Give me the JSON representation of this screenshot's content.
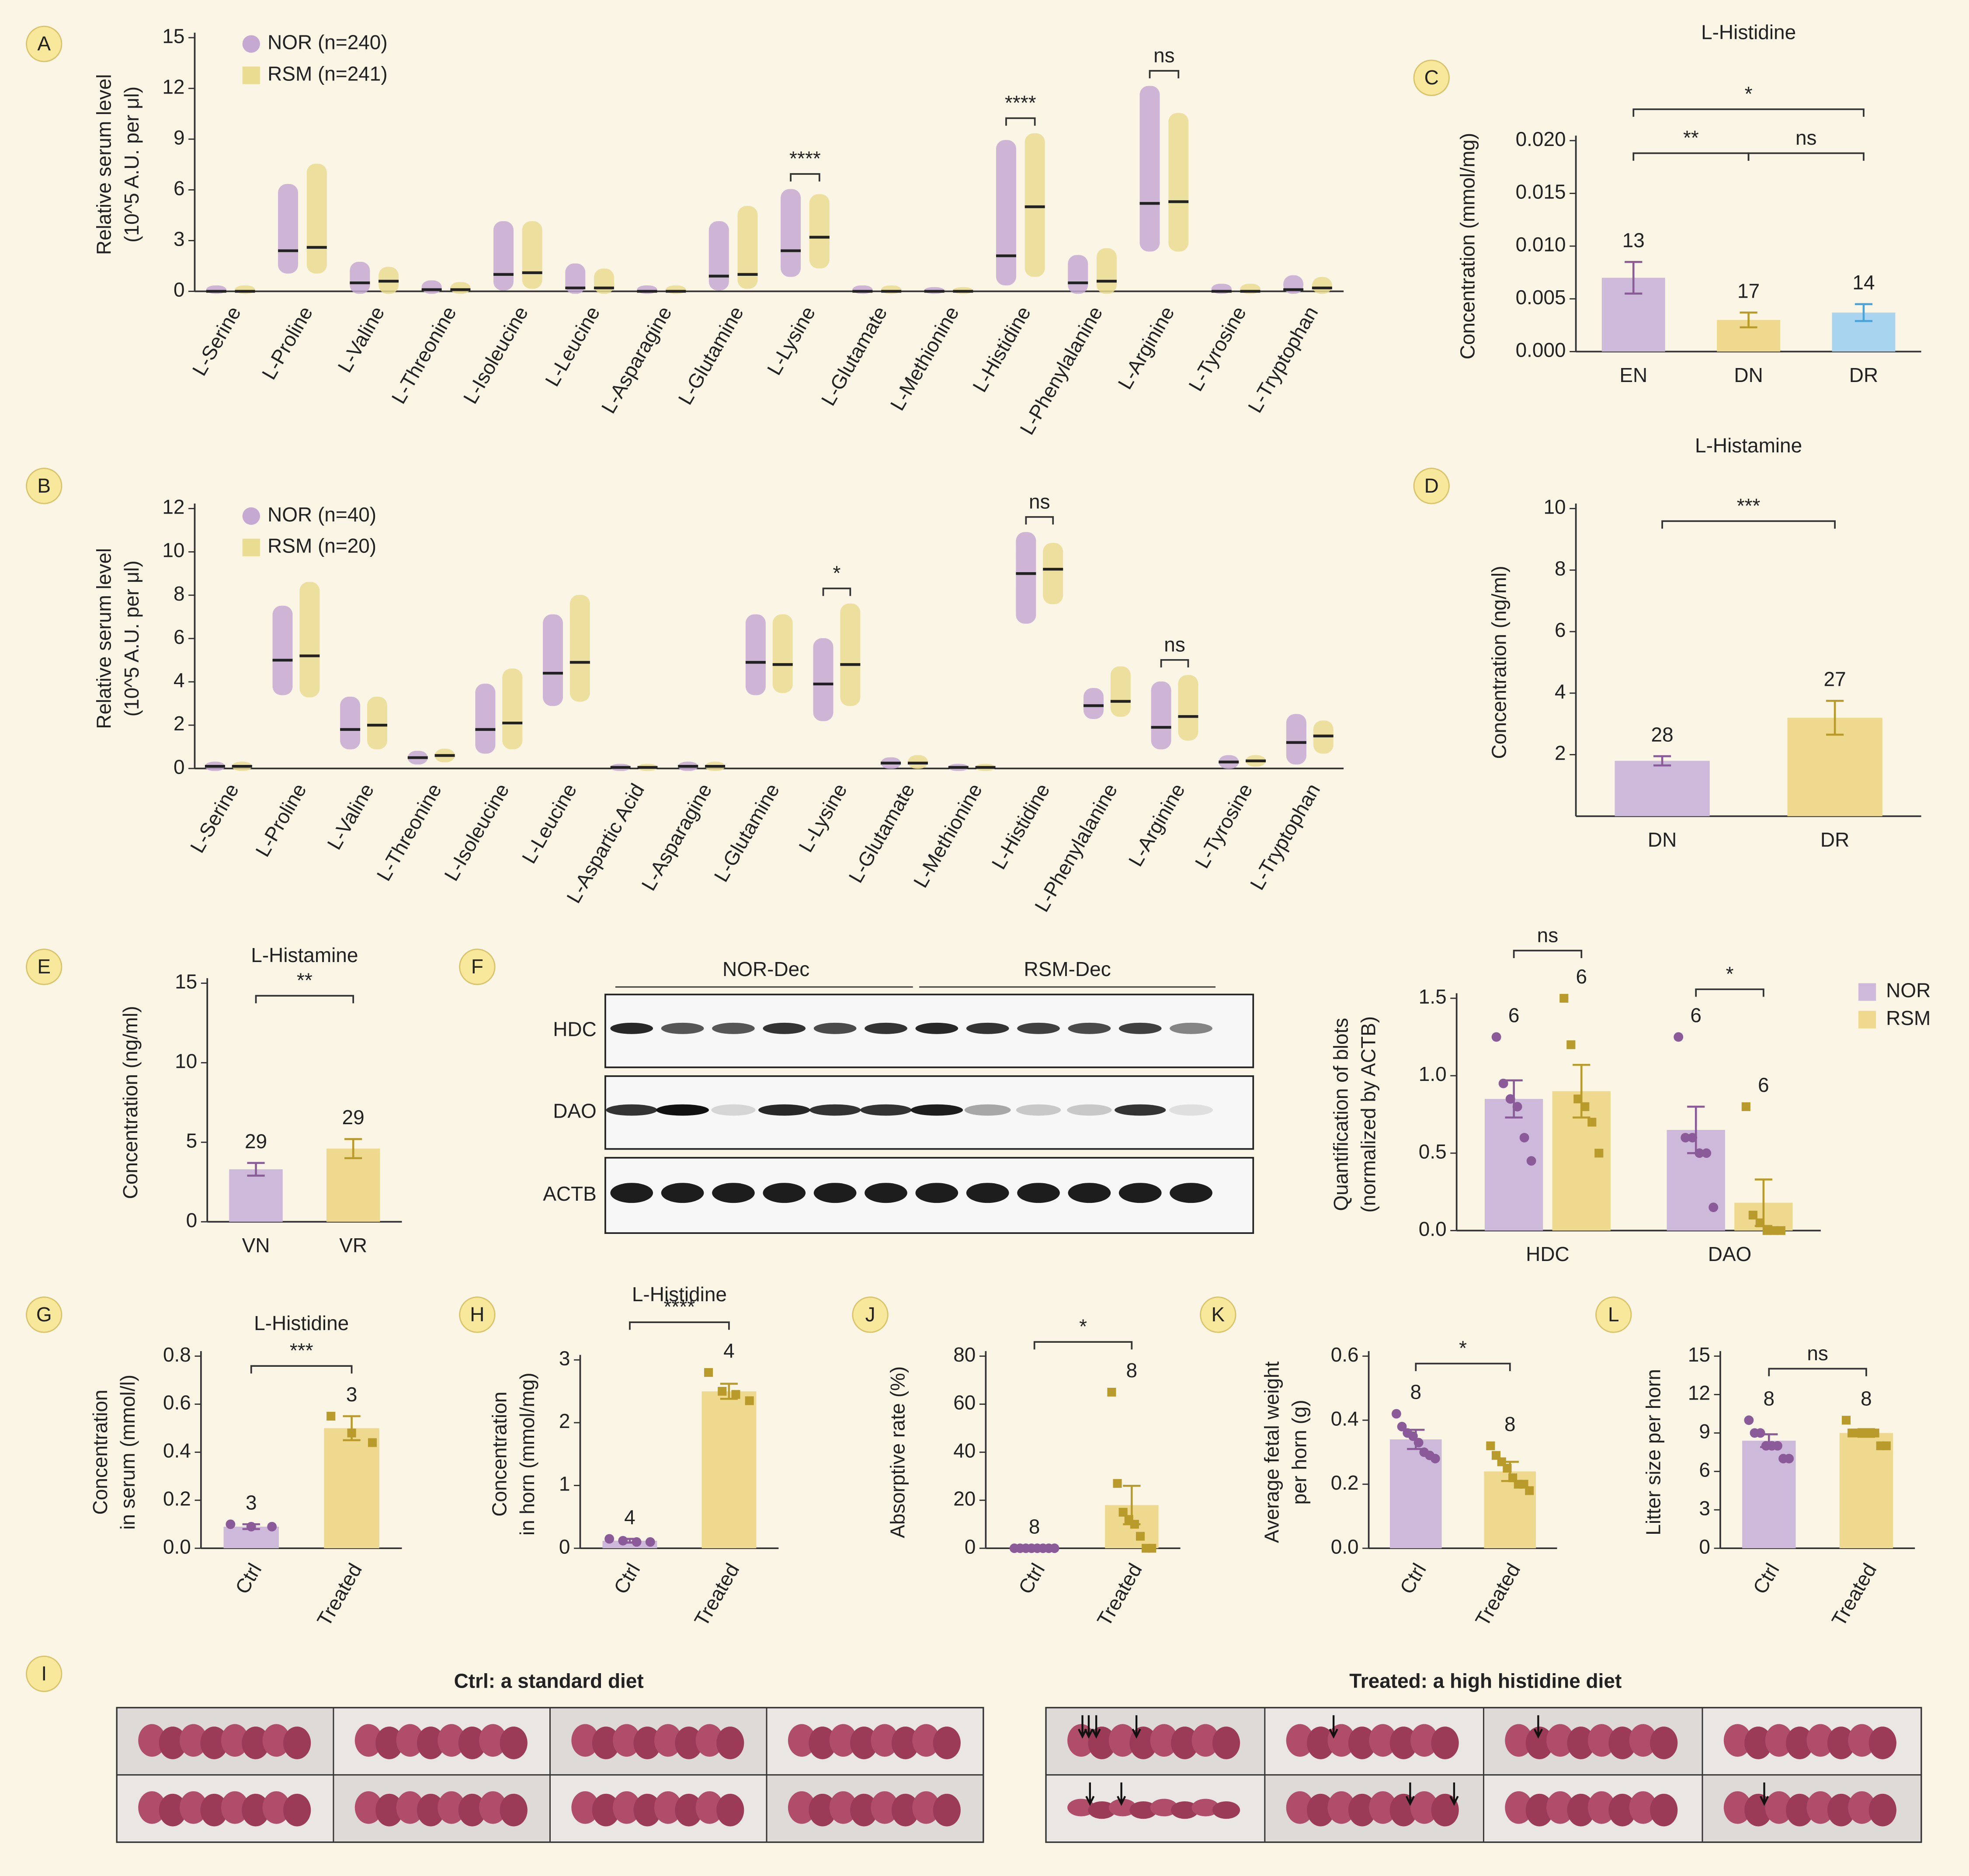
{
  "chart_data": [
    {
      "label": "A",
      "type": "strip",
      "ylabel": [
        "Relative serum level",
        "(10^5 A.U. per μl)"
      ],
      "categories": [
        "L-Serine",
        "L-Proline",
        "L-Valine",
        "L-Threonine",
        "L-Isoleucine",
        "L-Leucine",
        "L-Asparagine",
        "L-Glutamine",
        "L-Lysine",
        "L-Glutamate",
        "L-Methionine",
        "L-Histidine",
        "L-Phenylalanine",
        "L-Arginine",
        "L-Tyrosine",
        "L-Tryptophan"
      ],
      "series": [
        {
          "name": "NOR (n=240)",
          "color": "#c6a9d2",
          "marker": "circle",
          "values": [
            0,
            2.4,
            0.5,
            0.1,
            1.0,
            0.2,
            0,
            0.9,
            2.4,
            0,
            0,
            2.1,
            0.5,
            5.2,
            0,
            0.1
          ],
          "min": [
            0,
            1.2,
            0,
            0,
            0.2,
            0,
            0,
            0.2,
            1,
            0,
            0,
            0.5,
            0,
            2.5,
            0,
            0
          ],
          "max": [
            0.2,
            6.2,
            1.6,
            0.5,
            4.0,
            1.5,
            0.2,
            4.0,
            5.9,
            0.2,
            0.1,
            8.8,
            2.0,
            12.0,
            0.3,
            0.8
          ]
        },
        {
          "name": "RSM (n=241)",
          "color": "#eadc90",
          "marker": "square",
          "values": [
            0,
            2.6,
            0.6,
            0.1,
            1.1,
            0.2,
            0,
            1.0,
            3.2,
            0,
            0,
            5.0,
            0.6,
            5.3,
            0,
            0.2
          ],
          "min": [
            0,
            1.2,
            0,
            0,
            0.3,
            0,
            0,
            0.3,
            1.5,
            0,
            0,
            1,
            0,
            2.5,
            0,
            0
          ],
          "max": [
            0.2,
            7.4,
            1.3,
            0.4,
            4.0,
            1.2,
            0.2,
            4.9,
            5.6,
            0.2,
            0.1,
            9.2,
            2.4,
            10.4,
            0.3,
            0.7
          ]
        }
      ],
      "significance": [
        null,
        null,
        null,
        null,
        null,
        null,
        null,
        null,
        "****",
        null,
        null,
        "****",
        null,
        "ns",
        null,
        null
      ],
      "ylim": [
        0,
        15
      ],
      "yticks": [
        0,
        3,
        6,
        9,
        12,
        15
      ],
      "rotated_labels": true
    },
    {
      "label": "B",
      "type": "strip",
      "ylabel": [
        "Relative serum level",
        "(10^5 A.U. per μl)"
      ],
      "categories": [
        "L-Serine",
        "L-Proline",
        "L-Valine",
        "L-Threonine",
        "L-Isoleucine",
        "L-Leucine",
        "L-Aspartic Acid",
        "L-Asparagine",
        "L-Glutamine",
        "L-Lysine",
        "L-Glutamate",
        "L-Methionine",
        "L-Histidine",
        "L-Phenylalanine",
        "L-Arginine",
        "L-Tyrosine",
        "L-Tryptophan"
      ],
      "series": [
        {
          "name": "NOR (n=40)",
          "color": "#c6a9d2",
          "marker": "circle",
          "values": [
            0.1,
            5.0,
            1.8,
            0.5,
            1.8,
            4.4,
            0.05,
            0.1,
            4.9,
            3.9,
            0.25,
            0.05,
            9.0,
            2.9,
            1.9,
            0.3,
            1.2
          ],
          "min": [
            0,
            3.5,
            1,
            0.3,
            0.8,
            3,
            0,
            0,
            3.5,
            2.3,
            0.1,
            0,
            6.8,
            2.4,
            1,
            0.1,
            0.3
          ],
          "max": [
            0.2,
            7.4,
            3.2,
            0.7,
            3.8,
            7.0,
            0.1,
            0.2,
            7.0,
            5.9,
            0.4,
            0.1,
            10.8,
            3.6,
            3.9,
            0.5,
            2.4
          ]
        },
        {
          "name": "RSM (n=20)",
          "color": "#eadc90",
          "marker": "square",
          "values": [
            0.1,
            5.2,
            2.0,
            0.6,
            2.1,
            4.9,
            0.05,
            0.1,
            4.8,
            4.8,
            0.25,
            0.05,
            9.2,
            3.1,
            2.4,
            0.35,
            1.5
          ],
          "min": [
            0,
            3.4,
            1,
            0.4,
            1,
            3.2,
            0,
            0,
            3.6,
            3,
            0.1,
            0,
            7.7,
            2.5,
            1.4,
            0.2,
            0.8
          ],
          "max": [
            0.2,
            8.5,
            3.2,
            0.8,
            4.5,
            7.9,
            0.1,
            0.2,
            7.0,
            7.5,
            0.5,
            0.1,
            10.3,
            4.6,
            4.2,
            0.5,
            2.1
          ]
        }
      ],
      "significance": [
        null,
        null,
        null,
        null,
        null,
        null,
        null,
        null,
        null,
        "*",
        null,
        null,
        "ns",
        null,
        "ns",
        null,
        null
      ],
      "ylim": [
        0,
        12
      ],
      "yticks": [
        0,
        2,
        4,
        6,
        8,
        10,
        12
      ],
      "rotated_labels": true
    },
    {
      "label": "C",
      "type": "bar",
      "title": "L-Histidine",
      "ylabel": [
        "Concentration  (mmol/mg)"
      ],
      "categories": [
        "EN",
        "DN",
        "DR"
      ],
      "values": [
        0.007,
        0.003,
        0.0037
      ],
      "errors": [
        0.0015,
        0.0007,
        0.0008
      ],
      "sample_sizes": [
        13,
        17,
        14
      ],
      "colors": [
        "#cdb9d9",
        "#eed98e",
        "#a9d4f0"
      ],
      "point_colors": [
        "#8b5a98",
        "#b99b2c",
        "#4aa3d9"
      ],
      "significance": [
        {
          "text": "*",
          "between": [
            "EN",
            "DR"
          ]
        },
        {
          "text": "**",
          "between": [
            "EN",
            "DN"
          ]
        },
        {
          "text": "ns",
          "between": [
            "DN",
            "DR"
          ]
        }
      ],
      "ylim": [
        0,
        0.02
      ],
      "yticks": [
        {
          "value": 0,
          "label": "0.000"
        },
        {
          "value": 0.005,
          "label": "0.005"
        },
        {
          "value": 0.01,
          "label": "0.010"
        },
        {
          "value": 0.015,
          "label": "0.015"
        },
        {
          "value": 0.02,
          "label": "0.020"
        }
      ]
    },
    {
      "label": "D",
      "type": "bar",
      "title": "L-Histamine",
      "ylabel": [
        "Concentration (ng/ml)"
      ],
      "categories": [
        "DN",
        "DR"
      ],
      "values": [
        1.8,
        3.2
      ],
      "errors": [
        0.15,
        0.55
      ],
      "sample_sizes": [
        28,
        27
      ],
      "colors": [
        "#cdb9d9",
        "#eed98e"
      ],
      "point_colors": [
        "#8b5a98",
        "#b99b2c"
      ],
      "significance": [
        {
          "text": "***",
          "between": [
            "DN",
            "DR"
          ]
        }
      ],
      "ylim": [
        0,
        10
      ],
      "yticks": [
        2,
        4,
        6,
        8,
        10
      ]
    },
    {
      "label": "E",
      "type": "bar",
      "title": "L-Histamine",
      "ylabel": [
        "Concentration (ng/ml)"
      ],
      "categories": [
        "VN",
        "VR"
      ],
      "values": [
        3.3,
        4.6
      ],
      "errors": [
        0.4,
        0.6
      ],
      "sample_sizes": [
        29,
        29
      ],
      "colors": [
        "#cdb9d9",
        "#eed98e"
      ],
      "point_colors": [
        "#8b5a98",
        "#b99b2c"
      ],
      "significance": [
        {
          "text": "**",
          "between": [
            "VN",
            "VR"
          ]
        }
      ],
      "ylim": [
        0,
        15
      ],
      "yticks": [
        0,
        5,
        10,
        15
      ]
    },
    {
      "label": "F",
      "type": "grouped_bar",
      "ylabel": [
        "Quantification of blots",
        "(normalized by ACTB)"
      ],
      "categories": [
        "HDC",
        "DAO"
      ],
      "series": [
        {
          "name": "NOR",
          "color": "#cdb9d9",
          "point_color": "#8b5a98",
          "marker": "circle",
          "values": [
            0.85,
            0.65
          ],
          "errors": [
            0.12,
            0.15
          ],
          "sample_sizes": [
            6,
            6
          ],
          "points": [
            [
              1.25,
              0.95,
              0.85,
              0.8,
              0.6,
              0.45
            ],
            [
              1.25,
              0.6,
              0.6,
              0.5,
              0.5,
              0.15
            ]
          ]
        },
        {
          "name": "RSM",
          "color": "#eed98e",
          "point_color": "#b99b2c",
          "marker": "square",
          "values": [
            0.9,
            0.18
          ],
          "errors": [
            0.17,
            0.15
          ],
          "sample_sizes": [
            6,
            6
          ],
          "points": [
            [
              1.5,
              1.2,
              0.85,
              0.8,
              0.7,
              0.5
            ],
            [
              0.8,
              0.1,
              0.05,
              0,
              0,
              0
            ]
          ]
        }
      ],
      "significance": [
        "ns",
        "*"
      ],
      "ylim": [
        0,
        1.5
      ],
      "yticks": [
        {
          "value": 0,
          "label": "0.0"
        },
        0.5,
        {
          "value": 1,
          "label": "1.0"
        },
        1.5
      ]
    },
    {
      "label": "G",
      "type": "bar",
      "title": "L-Histidine",
      "ylabel": [
        "Concentration",
        "in serum (mmol/l)"
      ],
      "categories": [
        "Ctrl",
        "Treated"
      ],
      "values": [
        0.09,
        0.5
      ],
      "errors": [
        0.01,
        0.05
      ],
      "sample_sizes": [
        3,
        3
      ],
      "colors": [
        "#cdb9d9",
        "#eed98e"
      ],
      "point_colors": [
        "#8b5a98",
        "#b99b2c"
      ],
      "markers": [
        "circle",
        "square"
      ],
      "points": [
        [
          0.1,
          0.09,
          0.09
        ],
        [
          0.55,
          0.48,
          0.44
        ]
      ],
      "significance": [
        {
          "text": "***",
          "between": [
            "Ctrl",
            "Treated"
          ]
        }
      ],
      "ylim": [
        0,
        0.8
      ],
      "yticks": [
        {
          "value": 0,
          "label": "0.0"
        },
        0.2,
        0.4,
        0.6,
        0.8
      ],
      "rotated_labels": true
    },
    {
      "label": "H",
      "type": "bar",
      "title": "L-Histidine",
      "ylabel": [
        "Concentration",
        "in horn (mmol/mg)"
      ],
      "categories": [
        "Ctrl",
        "Treated"
      ],
      "values": [
        0.12,
        2.5
      ],
      "errors": [
        0.03,
        0.12
      ],
      "sample_sizes": [
        4,
        4
      ],
      "colors": [
        "#cdb9d9",
        "#eed98e"
      ],
      "point_colors": [
        "#8b5a98",
        "#b99b2c"
      ],
      "markers": [
        "circle",
        "square"
      ],
      "points": [
        [
          0.15,
          0.12,
          0.1,
          0.1
        ],
        [
          2.8,
          2.5,
          2.45,
          2.35
        ]
      ],
      "significance": [
        {
          "text": "****",
          "between": [
            "Ctrl",
            "Treated"
          ]
        }
      ],
      "ylim": [
        0,
        3
      ],
      "yticks": [
        0,
        1,
        2,
        3
      ],
      "rotated_labels": true
    },
    {
      "label": "J",
      "type": "bar",
      "ylabel": [
        "Absorptive rate (%)"
      ],
      "categories": [
        "Ctrl",
        "Treated"
      ],
      "values": [
        0,
        18
      ],
      "errors": [
        0,
        8
      ],
      "sample_sizes": [
        8,
        8
      ],
      "colors": [
        "#cdb9d9",
        "#eed98e"
      ],
      "point_colors": [
        "#8b5a98",
        "#b99b2c"
      ],
      "markers": [
        "circle",
        "square"
      ],
      "points": [
        [
          0,
          0,
          0,
          0,
          0,
          0,
          0,
          0
        ],
        [
          65,
          27,
          15,
          12,
          10,
          5,
          0,
          0
        ]
      ],
      "significance": [
        {
          "text": "*",
          "between": [
            "Ctrl",
            "Treated"
          ]
        }
      ],
      "ylim": [
        0,
        80
      ],
      "yticks": [
        0,
        20,
        40,
        60,
        80
      ],
      "rotated_labels": true
    },
    {
      "label": "K",
      "type": "bar",
      "ylabel": [
        "Average fetal weight",
        "per horn (g)"
      ],
      "categories": [
        "Ctrl",
        "Treated"
      ],
      "values": [
        0.34,
        0.24
      ],
      "errors": [
        0.03,
        0.03
      ],
      "sample_sizes": [
        8,
        8
      ],
      "colors": [
        "#cdb9d9",
        "#eed98e"
      ],
      "point_colors": [
        "#8b5a98",
        "#b99b2c"
      ],
      "markers": [
        "circle",
        "square"
      ],
      "points": [
        [
          0.42,
          0.38,
          0.36,
          0.35,
          0.33,
          0.3,
          0.29,
          0.28
        ],
        [
          0.32,
          0.29,
          0.27,
          0.25,
          0.22,
          0.2,
          0.2,
          0.18
        ]
      ],
      "significance": [
        {
          "text": "*",
          "between": [
            "Ctrl",
            "Treated"
          ]
        }
      ],
      "ylim": [
        0,
        0.6
      ],
      "yticks": [
        {
          "value": 0,
          "label": "0.0"
        },
        0.2,
        0.4,
        0.6
      ],
      "rotated_labels": true
    },
    {
      "label": "L",
      "type": "bar",
      "ylabel": [
        "Litter size per horn"
      ],
      "categories": [
        "Ctrl",
        "Treated"
      ],
      "values": [
        8.4,
        9.0
      ],
      "errors": [
        0.5,
        0.3
      ],
      "sample_sizes": [
        8,
        8
      ],
      "colors": [
        "#cdb9d9",
        "#eed98e"
      ],
      "point_colors": [
        "#8b5a98",
        "#b99b2c"
      ],
      "markers": [
        "circle",
        "square"
      ],
      "points": [
        [
          10,
          9,
          9,
          8,
          8,
          8,
          7,
          7
        ],
        [
          10,
          9,
          9,
          9,
          9,
          9,
          8,
          8
        ]
      ],
      "significance": [
        {
          "text": "ns",
          "between": [
            "Ctrl",
            "Treated"
          ]
        }
      ],
      "ylim": [
        0,
        15
      ],
      "yticks": [
        0,
        3,
        6,
        9,
        12,
        15
      ],
      "rotated_labels": true
    }
  ],
  "blot": {
    "groups": [
      "NOR-Dec",
      "RSM-Dec"
    ],
    "rows": [
      "HDC",
      "DAO",
      "ACTB"
    ]
  },
  "photos": {
    "label": "I",
    "groups": [
      {
        "title": "Ctrl: a standard diet"
      },
      {
        "title": "Treated: a high histidine diet"
      }
    ]
  }
}
